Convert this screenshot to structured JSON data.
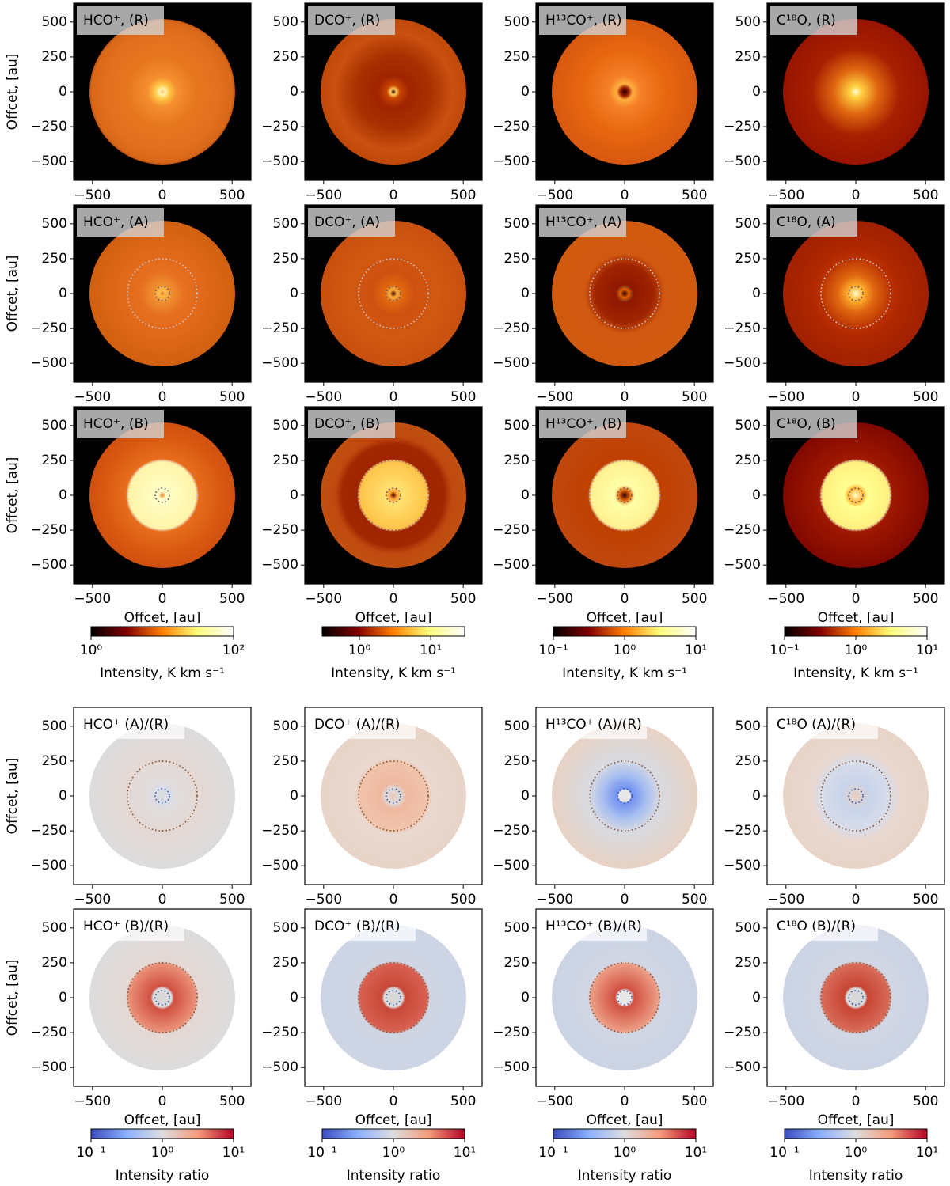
{
  "chart_data": [
    {
      "type": "heatmap",
      "title": "HCO⁺, (R)",
      "xlim": [
        -635,
        635
      ],
      "ylim": [
        -635,
        635
      ],
      "xticks": [
        {
          "value": -500,
          "label": "−500"
        },
        0,
        500
      ],
      "yticks": [
        {
          "value": -500,
          "label": "−500"
        },
        {
          "value": -250,
          "label": "−250"
        },
        0,
        250,
        500
      ],
      "ylabel": "Offcet, [au]"
    },
    {
      "type": "heatmap",
      "title": "DCO⁺, (R)",
      "xlim": [
        -635,
        635
      ],
      "ylim": [
        -635,
        635
      ],
      "xticks": [
        {
          "value": -500,
          "label": "−500"
        },
        0,
        500
      ],
      "yticks": [
        {
          "value": -500,
          "label": "−500"
        },
        {
          "value": -250,
          "label": "−250"
        },
        0,
        250,
        500
      ]
    },
    {
      "type": "heatmap",
      "title": "H¹³CO⁺, (R)",
      "xlim": [
        -635,
        635
      ],
      "ylim": [
        -635,
        635
      ],
      "xticks": [
        {
          "value": -500,
          "label": "−500"
        },
        0,
        500
      ],
      "yticks": [
        {
          "value": -500,
          "label": "−500"
        },
        {
          "value": -250,
          "label": "−250"
        },
        0,
        250,
        500
      ]
    },
    {
      "type": "heatmap",
      "title": "C¹⁸O, (R)",
      "xlim": [
        -635,
        635
      ],
      "ylim": [
        -635,
        635
      ],
      "xticks": [
        {
          "value": -500,
          "label": "−500"
        },
        0,
        500
      ],
      "yticks": [
        {
          "value": -500,
          "label": "−500"
        },
        {
          "value": -250,
          "label": "−250"
        },
        0,
        250,
        500
      ]
    },
    {
      "type": "heatmap",
      "title": "HCO⁺, (A)",
      "xlim": [
        -635,
        635
      ],
      "ylim": [
        -635,
        635
      ],
      "xticks": [
        {
          "value": -500,
          "label": "−500"
        },
        0,
        500
      ],
      "yticks": [
        {
          "value": -500,
          "label": "−500"
        },
        {
          "value": -250,
          "label": "−250"
        },
        0,
        250,
        500
      ],
      "ylabel": "Offcet, [au]"
    },
    {
      "type": "heatmap",
      "title": "DCO⁺, (A)",
      "xlim": [
        -635,
        635
      ],
      "ylim": [
        -635,
        635
      ],
      "xticks": [
        {
          "value": -500,
          "label": "−500"
        },
        0,
        500
      ],
      "yticks": [
        {
          "value": -500,
          "label": "−500"
        },
        {
          "value": -250,
          "label": "−250"
        },
        0,
        250,
        500
      ]
    },
    {
      "type": "heatmap",
      "title": "H¹³CO⁺, (A)",
      "xlim": [
        -635,
        635
      ],
      "ylim": [
        -635,
        635
      ],
      "xticks": [
        {
          "value": -500,
          "label": "−500"
        },
        0,
        500
      ],
      "yticks": [
        {
          "value": -500,
          "label": "−500"
        },
        {
          "value": -250,
          "label": "−250"
        },
        0,
        250,
        500
      ]
    },
    {
      "type": "heatmap",
      "title": "C¹⁸O, (A)",
      "xlim": [
        -635,
        635
      ],
      "ylim": [
        -635,
        635
      ],
      "xticks": [
        {
          "value": -500,
          "label": "−500"
        },
        0,
        500
      ],
      "yticks": [
        {
          "value": -500,
          "label": "−500"
        },
        {
          "value": -250,
          "label": "−250"
        },
        0,
        250,
        500
      ]
    },
    {
      "type": "heatmap",
      "title": "HCO⁺, (B)",
      "xlim": [
        -635,
        635
      ],
      "ylim": [
        -635,
        635
      ],
      "xticks": [
        {
          "value": -500,
          "label": "−500"
        },
        0,
        500
      ],
      "yticks": [
        {
          "value": -500,
          "label": "−500"
        },
        {
          "value": -250,
          "label": "−250"
        },
        0,
        250,
        500
      ],
      "ylabel": "Offcet, [au]",
      "xlabel": "Offcet, [au]",
      "colorbar": {
        "label": "Intensity, K km s⁻¹",
        "scale": "log",
        "colormap": "afmhot",
        "lim": [
          1,
          100
        ],
        "ticks": [
          {
            "value": 1,
            "label": "10⁰"
          },
          {
            "value": 100,
            "label": "10²"
          }
        ]
      }
    },
    {
      "type": "heatmap",
      "title": "DCO⁺, (B)",
      "xlim": [
        -635,
        635
      ],
      "ylim": [
        -635,
        635
      ],
      "xticks": [
        {
          "value": -500,
          "label": "−500"
        },
        0,
        500
      ],
      "yticks": [
        {
          "value": -500,
          "label": "−500"
        },
        {
          "value": -250,
          "label": "−250"
        },
        0,
        250,
        500
      ],
      "xlabel": "Offcet, [au]",
      "colorbar": {
        "label": "Intensity, K km s⁻¹",
        "scale": "log",
        "colormap": "afmhot",
        "lim": [
          0.3,
          30
        ],
        "ticks": [
          {
            "value": 1,
            "label": "10⁰"
          },
          {
            "value": 10,
            "label": "10¹"
          }
        ]
      }
    },
    {
      "type": "heatmap",
      "title": "H¹³CO⁺, (B)",
      "xlim": [
        -635,
        635
      ],
      "ylim": [
        -635,
        635
      ],
      "xticks": [
        {
          "value": -500,
          "label": "−500"
        },
        0,
        500
      ],
      "yticks": [
        {
          "value": -500,
          "label": "−500"
        },
        {
          "value": -250,
          "label": "−250"
        },
        0,
        250,
        500
      ],
      "xlabel": "Offcet, [au]",
      "colorbar": {
        "label": "Intensity, K km s⁻¹",
        "scale": "log",
        "colormap": "afmhot",
        "lim": [
          0.1,
          10
        ],
        "ticks": [
          {
            "value": 0.1,
            "label": "10⁻¹"
          },
          {
            "value": 1,
            "label": "10⁰"
          },
          {
            "value": 10,
            "label": "10¹"
          }
        ]
      }
    },
    {
      "type": "heatmap",
      "title": "C¹⁸O, (B)",
      "xlim": [
        -635,
        635
      ],
      "ylim": [
        -635,
        635
      ],
      "xticks": [
        {
          "value": -500,
          "label": "−500"
        },
        0,
        500
      ],
      "yticks": [
        {
          "value": -500,
          "label": "−500"
        },
        {
          "value": -250,
          "label": "−250"
        },
        0,
        250,
        500
      ],
      "xlabel": "Offcet, [au]",
      "colorbar": {
        "label": "Intensity, K km s⁻¹",
        "scale": "log",
        "colormap": "afmhot",
        "lim": [
          0.1,
          10
        ],
        "ticks": [
          {
            "value": 0.1,
            "label": "10⁻¹"
          },
          {
            "value": 1,
            "label": "10⁰"
          },
          {
            "value": 10,
            "label": "10¹"
          }
        ]
      }
    },
    {
      "type": "heatmap",
      "title": "HCO⁺ (A)/(R)",
      "xlim": [
        -635,
        635
      ],
      "ylim": [
        -635,
        635
      ],
      "xticks": [
        {
          "value": -500,
          "label": "−500"
        },
        0,
        500
      ],
      "yticks": [
        {
          "value": -500,
          "label": "−500"
        },
        {
          "value": -250,
          "label": "−250"
        },
        0,
        250,
        500
      ],
      "ylabel": "Offcet, [au]"
    },
    {
      "type": "heatmap",
      "title": "DCO⁺ (A)/(R)",
      "xlim": [
        -635,
        635
      ],
      "ylim": [
        -635,
        635
      ],
      "xticks": [
        {
          "value": -500,
          "label": "−500"
        },
        0,
        500
      ],
      "yticks": [
        {
          "value": -500,
          "label": "−500"
        },
        {
          "value": -250,
          "label": "−250"
        },
        0,
        250,
        500
      ]
    },
    {
      "type": "heatmap",
      "title": "H¹³CO⁺ (A)/(R)",
      "xlim": [
        -635,
        635
      ],
      "ylim": [
        -635,
        635
      ],
      "xticks": [
        {
          "value": -500,
          "label": "−500"
        },
        0,
        500
      ],
      "yticks": [
        {
          "value": -500,
          "label": "−500"
        },
        {
          "value": -250,
          "label": "−250"
        },
        0,
        250,
        500
      ]
    },
    {
      "type": "heatmap",
      "title": "C¹⁸O (A)/(R)",
      "xlim": [
        -635,
        635
      ],
      "ylim": [
        -635,
        635
      ],
      "xticks": [
        {
          "value": -500,
          "label": "−500"
        },
        0,
        500
      ],
      "yticks": [
        {
          "value": -500,
          "label": "−500"
        },
        {
          "value": -250,
          "label": "−250"
        },
        0,
        250,
        500
      ]
    },
    {
      "type": "heatmap",
      "title": "HCO⁺ (B)/(R)",
      "xlim": [
        -635,
        635
      ],
      "ylim": [
        -635,
        635
      ],
      "xticks": [
        {
          "value": -500,
          "label": "−500"
        },
        0,
        500
      ],
      "yticks": [
        {
          "value": -500,
          "label": "−500"
        },
        {
          "value": -250,
          "label": "−250"
        },
        0,
        250,
        500
      ],
      "ylabel": "Offcet, [au]",
      "xlabel": "Offcet, [au]",
      "colorbar": {
        "label": "Intensity ratio",
        "scale": "log",
        "colormap": "coolwarm",
        "lim": [
          0.1,
          10
        ],
        "ticks": [
          {
            "value": 0.1,
            "label": "10⁻¹"
          },
          {
            "value": 1,
            "label": "10⁰"
          },
          {
            "value": 10,
            "label": "10¹"
          }
        ]
      }
    },
    {
      "type": "heatmap",
      "title": "DCO⁺ (B)/(R)",
      "xlim": [
        -635,
        635
      ],
      "ylim": [
        -635,
        635
      ],
      "xticks": [
        {
          "value": -500,
          "label": "−500"
        },
        0,
        500
      ],
      "yticks": [
        {
          "value": -500,
          "label": "−500"
        },
        {
          "value": -250,
          "label": "−250"
        },
        0,
        250,
        500
      ],
      "xlabel": "Offcet, [au]",
      "colorbar": {
        "label": "Intensity ratio",
        "scale": "log",
        "colormap": "coolwarm",
        "lim": [
          0.1,
          10
        ],
        "ticks": [
          {
            "value": 0.1,
            "label": "10⁻¹"
          },
          {
            "value": 1,
            "label": "10⁰"
          },
          {
            "value": 10,
            "label": "10¹"
          }
        ]
      }
    },
    {
      "type": "heatmap",
      "title": "H¹³CO⁺ (B)/(R)",
      "xlim": [
        -635,
        635
      ],
      "ylim": [
        -635,
        635
      ],
      "xticks": [
        {
          "value": -500,
          "label": "−500"
        },
        0,
        500
      ],
      "yticks": [
        {
          "value": -500,
          "label": "−500"
        },
        {
          "value": -250,
          "label": "−250"
        },
        0,
        250,
        500
      ],
      "xlabel": "Offcet, [au]",
      "colorbar": {
        "label": "Intensity ratio",
        "scale": "log",
        "colormap": "coolwarm",
        "lim": [
          0.1,
          10
        ],
        "ticks": [
          {
            "value": 0.1,
            "label": "10⁻¹"
          },
          {
            "value": 1,
            "label": "10⁰"
          },
          {
            "value": 10,
            "label": "10¹"
          }
        ]
      }
    },
    {
      "type": "heatmap",
      "title": "C¹⁸O (B)/(R)",
      "xlim": [
        -635,
        635
      ],
      "ylim": [
        -635,
        635
      ],
      "xticks": [
        {
          "value": -500,
          "label": "−500"
        },
        0,
        500
      ],
      "yticks": [
        {
          "value": -500,
          "label": "−500"
        },
        {
          "value": -250,
          "label": "−250"
        },
        0,
        250,
        500
      ],
      "xlabel": "Offcet, [au]",
      "colorbar": {
        "label": "Intensity ratio",
        "scale": "log",
        "colormap": "coolwarm",
        "lim": [
          0.1,
          10
        ],
        "ticks": [
          {
            "value": 0.1,
            "label": "10⁻¹"
          },
          {
            "value": 1,
            "label": "10⁰"
          },
          {
            "value": 10,
            "label": "10¹"
          }
        ]
      }
    }
  ]
}
